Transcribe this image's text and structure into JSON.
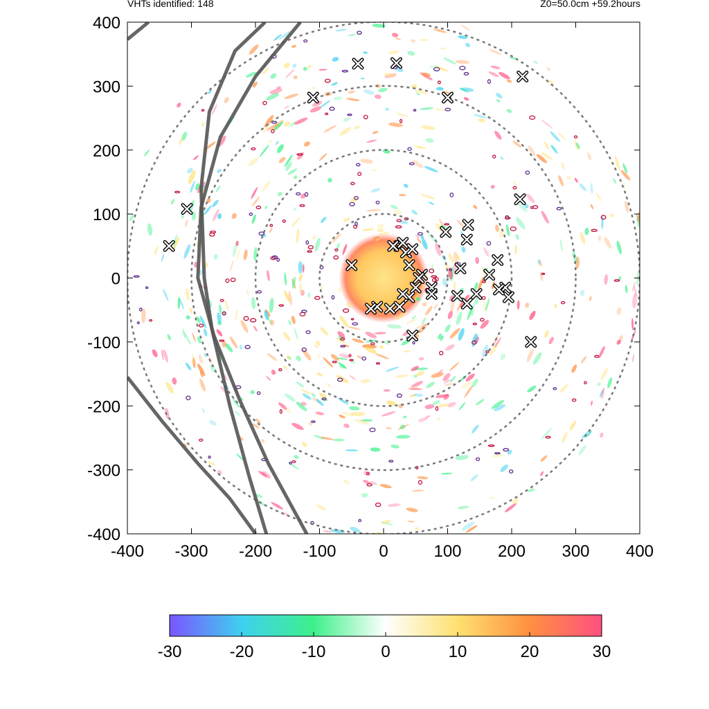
{
  "header": {
    "left_text": "VHTs identified: 148",
    "right_text": "Z0=50.0cm  +59.2hours"
  },
  "chart_data": {
    "type": "heatmap",
    "title": "",
    "xlabel": "",
    "ylabel": "",
    "xlim": [
      -400,
      400
    ],
    "ylim": [
      -400,
      400
    ],
    "x_ticks": [
      "-400",
      "-300",
      "-200",
      "-100",
      "0",
      "100",
      "200",
      "300",
      "400"
    ],
    "y_ticks": [
      "400",
      "300",
      "200",
      "100",
      "0",
      "-100",
      "-200",
      "-300",
      "-400"
    ],
    "colorbar": {
      "range": [
        -30,
        30
      ],
      "ticks": [
        "-30",
        "-20",
        "-10",
        "0",
        "10",
        "20",
        "30"
      ],
      "colors": [
        "#7b55ff",
        "#3fd0f0",
        "#3ef08a",
        "#ffffff",
        "#ffe070",
        "#ff9040",
        "#ff5080"
      ]
    },
    "range_rings": [
      100,
      200,
      300,
      400
    ],
    "vht_markers": [
      [
        -40,
        335
      ],
      [
        20,
        336
      ],
      [
        -110,
        282
      ],
      [
        100,
        282
      ],
      [
        217,
        315
      ],
      [
        -307,
        108
      ],
      [
        -335,
        50
      ],
      [
        213,
        123
      ],
      [
        97,
        72
      ],
      [
        132,
        83
      ],
      [
        130,
        60
      ],
      [
        -50,
        20
      ],
      [
        120,
        15
      ],
      [
        165,
        5
      ],
      [
        178,
        28
      ],
      [
        195,
        -30
      ],
      [
        190,
        -15
      ],
      [
        180,
        -18
      ],
      [
        145,
        -25
      ],
      [
        130,
        -40
      ],
      [
        115,
        -28
      ],
      [
        75,
        -15
      ],
      [
        75,
        -25
      ],
      [
        50,
        -15
      ],
      [
        40,
        -30
      ],
      [
        25,
        -45
      ],
      [
        -10,
        -45
      ],
      [
        45,
        -90
      ],
      [
        230,
        -100
      ],
      [
        60,
        5
      ],
      [
        40,
        20
      ],
      [
        25,
        50
      ],
      [
        15,
        50
      ],
      [
        30,
        55
      ],
      [
        35,
        40
      ],
      [
        10,
        -48
      ],
      [
        -20,
        -48
      ],
      [
        30,
        -25
      ],
      [
        55,
        0
      ],
      [
        45,
        45
      ]
    ],
    "track_segments": [
      [
        [
          -400,
          373
        ],
        [
          -367,
          400
        ]
      ],
      [
        [
          -185,
          400
        ],
        [
          -232,
          355
        ],
        [
          -272,
          260
        ],
        [
          -285,
          140
        ],
        [
          -280,
          0
        ],
        [
          -268,
          -80
        ],
        [
          -240,
          -200
        ],
        [
          -210,
          -310
        ],
        [
          -183,
          -400
        ]
      ],
      [
        [
          -400,
          -155
        ],
        [
          -345,
          -225
        ],
        [
          -290,
          -290
        ],
        [
          -240,
          -345
        ],
        [
          -200,
          -400
        ]
      ],
      [
        [
          -130,
          400
        ],
        [
          -200,
          315
        ],
        [
          -255,
          220
        ],
        [
          -285,
          110
        ],
        [
          -290,
          0
        ],
        [
          -265,
          -90
        ],
        [
          -225,
          -190
        ],
        [
          -180,
          -290
        ],
        [
          -120,
          -400
        ]
      ]
    ]
  }
}
